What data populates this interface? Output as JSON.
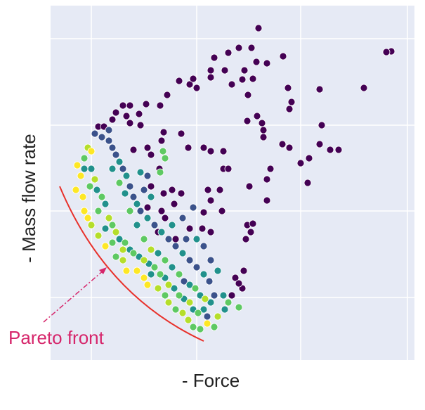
{
  "chart_data": {
    "type": "scatter",
    "xlabel": "- Force",
    "ylabel": "- Mass flow rate",
    "annotation": "Pareto front",
    "xlim": [
      0,
      518
    ],
    "ylim": [
      0,
      504
    ],
    "xticks": [
      58,
      208,
      356,
      508
    ],
    "yticks": [
      89,
      212,
      334,
      457
    ],
    "grid": true,
    "series": [
      {
        "color": "#440154",
        "x": [
          296,
          485,
          478,
          253,
          268,
          233,
          286,
          331,
          308,
          293,
          228,
          248,
          276,
          228,
          183,
          198,
          208,
          203,
          273,
          288,
          258,
          281,
          338,
          343,
          340,
          383,
          446,
          166,
          136,
          113,
          103,
          93,
          88,
          108,
          126,
          128,
          113,
          156,
          294,
          301,
          303,
          280,
          303,
          330,
          340,
          386,
          383,
          398,
          410,
          356,
          368,
          366,
          313,
          308,
          283,
          308,
          280,
          285,
          246,
          228,
          218,
          196,
          186,
          161,
          158,
          155,
          143,
          161,
          186,
          173,
          176,
          246,
          253,
          241,
          244,
          218,
          228,
          216,
          288,
          278,
          275,
          263,
          273,
          268,
          258,
          224,
          228,
          198,
          158,
          163,
          138,
          153,
          178,
          138,
          143,
          118,
          68,
          76
        ],
        "values": [
          472,
          439,
          438,
          437,
          444,
          430,
          444,
          432,
          422,
          424,
          412,
          412,
          412,
          402,
          397,
          392,
          387,
          400,
          399,
          400,
          392,
          377,
          387,
          367,
          357,
          385,
          387,
          377,
          364,
          362,
          362,
          352,
          342,
          347,
          350,
          334,
          337,
          362,
          347,
          337,
          327,
          340,
          317,
          307,
          302,
          334,
          307,
          299,
          299,
          280,
          287,
          252,
          272,
          257,
          247,
          227,
          192,
          182,
          297,
          297,
          302,
          302,
          322,
          324,
          312,
          272,
          247,
          237,
          237,
          242,
          222,
          272,
          272,
          242,
          212,
          210,
          182,
          187,
          194,
          172,
          127,
          117,
          102,
          109,
          92,
          242,
          227,
          187,
          212,
          202,
          217,
          182,
          172,
          302,
          292,
          299,
          332,
          332
        ]
      },
      {
        "color": "#3b528b",
        "x": [
          223,
          233,
          226,
          208,
          198,
          178,
          168,
          148,
          128,
          118,
          113,
          103,
          93,
          88,
          83,
          73,
          63,
          83,
          190,
          138,
          228,
          218,
          193,
          188,
          203,
          133
        ],
        "values": [
          62,
          92,
          112,
          132,
          142,
          162,
          172,
          192,
          212,
          232,
          247,
          272,
          292,
          302,
          312,
          317,
          322,
          327,
          112,
          262,
          142,
          162,
          172,
          202,
          217,
          242
        ]
      },
      {
        "color": "#21918c",
        "x": [
          246,
          48,
          58,
          66,
          78,
          78,
          98,
          113,
          126,
          140,
          143,
          163,
          176,
          190,
          203,
          218,
          228,
          218,
          188,
          158,
          138,
          123,
          108,
          98,
          88,
          106,
          123,
          153,
          173,
          198,
          213,
          128,
          238,
          208,
          173,
          143,
          248
        ],
        "values": [
          92,
          272,
          272,
          242,
          222,
          187,
          172,
          157,
          147,
          137,
          122,
          117,
          102,
          87,
          72,
          72,
          82,
          122,
          152,
          182,
          202,
          222,
          262,
          282,
          272,
          237,
          192,
          152,
          132,
          107,
          92,
          267,
          127,
          172,
          192,
          232,
          72
        ]
      },
      {
        "color": "#5ec962",
        "x": [
          88,
          93,
          163,
          178,
          203,
          213,
          233,
          253,
          268,
          48,
          56,
          73,
          68,
          88,
          106,
          118,
          148,
          156,
          183,
          210,
          98,
          113,
          133,
          163,
          183,
          206,
          160,
          163,
          156
        ],
        "values": [
          167,
          147,
          92,
          72,
          47,
          44,
          47,
          82,
          75,
          287,
          247,
          232,
          212,
          192,
          167,
          152,
          132,
          122,
          92,
          67,
          252,
          212,
          172,
          142,
          122,
          102,
          297,
          287,
          267
        ]
      },
      {
        "color": "#b5de2b",
        "x": [
          58,
          68,
          103,
          153,
          168,
          188,
          196,
          238,
          53,
          63,
          83,
          93,
          103,
          133,
          168,
          198,
          143,
          220
        ],
        "values": [
          192,
          177,
          142,
          102,
          82,
          67,
          57,
          62,
          302,
          257,
          202,
          182,
          157,
          142,
          107,
          82,
          157,
          87
        ]
      },
      {
        "color": "#fde725",
        "x": [
          38,
          43,
          36,
          46,
          48,
          53,
          78,
          108,
          123,
          133,
          138,
          223,
          58
        ],
        "values": [
          277,
          262,
          242,
          232,
          212,
          202,
          162,
          127,
          127,
          117,
          107,
          52,
          297
        ]
      }
    ]
  }
}
